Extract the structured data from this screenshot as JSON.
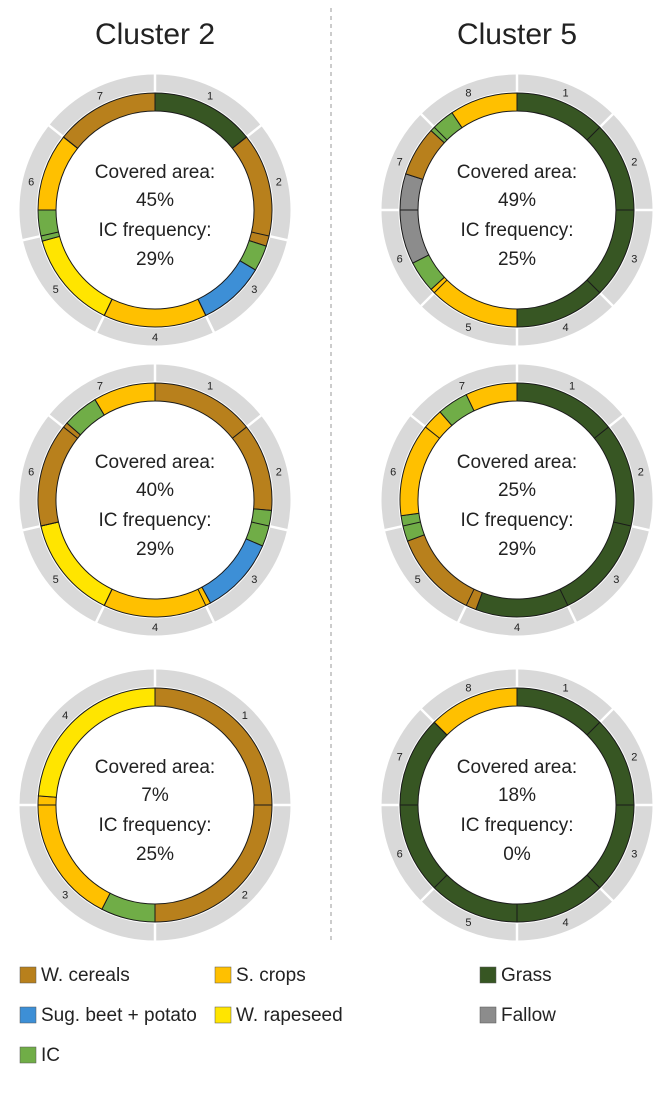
{
  "cluster_titles": [
    "Cluster 2",
    "Cluster 5"
  ],
  "legend": [
    {
      "name": "W. cereals",
      "color": "#b8801c"
    },
    {
      "name": "S. crops",
      "color": "#ffc000"
    },
    {
      "name": "Grass",
      "color": "#375623"
    },
    {
      "name": "Sug. beet + potato",
      "color": "#3d8fd6"
    },
    {
      "name": "W. rapeseed",
      "color": "#ffe500"
    },
    {
      "name": "Fallow",
      "color": "#8c8c8c"
    },
    {
      "name": "IC",
      "color": "#70ad47"
    }
  ],
  "chart_data": [
    {
      "type": "donut",
      "years": [
        1,
        2,
        3,
        4,
        5,
        6,
        7
      ],
      "segments": [
        {
          "crop": "Grass",
          "years": 1
        },
        {
          "crop": "W. cereals",
          "years": 1.1
        },
        {
          "crop": "IC",
          "years": 0.25
        },
        {
          "crop": "Sug. beet + potato",
          "years": 0.65
        },
        {
          "crop": "S. crops",
          "years": 1
        },
        {
          "crop": "W. rapeseed",
          "years": 0.95
        },
        {
          "crop": "IC",
          "years": 0.3
        },
        {
          "crop": "S. crops",
          "years": 0.75
        },
        {
          "crop": "W. cereals",
          "years": 1
        }
      ],
      "center_labels": [
        "Covered area:",
        "IC frequency:"
      ],
      "covered_area": {
        "value": 45,
        "label": "45%"
      },
      "ic_frequency": {
        "value": 29,
        "label": "29%"
      }
    },
    {
      "type": "donut",
      "years": [
        1,
        2,
        3,
        4,
        5,
        6,
        7
      ],
      "segments": [
        {
          "crop": "W. cereals",
          "years": 1.85
        },
        {
          "crop": "IC",
          "years": 0.35
        },
        {
          "crop": "Sug. beet + potato",
          "years": 0.75
        },
        {
          "crop": "S. crops",
          "years": 1.05
        },
        {
          "crop": "W. rapeseed",
          "years": 1
        },
        {
          "crop": "W. cereals",
          "years": 1.05
        },
        {
          "crop": "IC",
          "years": 0.35
        },
        {
          "crop": "S. crops",
          "years": 0.6
        }
      ],
      "center_labels": [
        "Covered area:",
        "IC frequency:"
      ],
      "covered_area": {
        "value": 40,
        "label": "40%"
      },
      "ic_frequency": {
        "value": 29,
        "label": "29%"
      }
    },
    {
      "type": "donut",
      "years": [
        1,
        2,
        3,
        4
      ],
      "segments": [
        {
          "crop": "W. cereals",
          "years": 2
        },
        {
          "crop": "IC",
          "years": 0.3
        },
        {
          "crop": "S. crops",
          "years": 0.75
        },
        {
          "crop": "W. rapeseed",
          "years": 0.95
        }
      ],
      "center_labels": [
        "Covered area:",
        "IC frequency:"
      ],
      "covered_area": {
        "value": 7,
        "label": "7%"
      },
      "ic_frequency": {
        "value": 25,
        "label": "25%"
      }
    },
    {
      "type": "donut",
      "years": [
        1,
        2,
        3,
        4,
        5,
        6,
        7,
        8
      ],
      "segments": [
        {
          "crop": "Grass",
          "years": 4
        },
        {
          "crop": "S. crops",
          "years": 1.05
        },
        {
          "crop": "IC",
          "years": 0.35
        },
        {
          "crop": "Fallow",
          "years": 1
        },
        {
          "crop": "W. cereals",
          "years": 0.55
        },
        {
          "crop": "IC",
          "years": 0.3
        },
        {
          "crop": "S. crops",
          "years": 0.75
        }
      ],
      "center_labels": [
        "Covered area:",
        "IC frequency:"
      ],
      "covered_area": {
        "value": 49,
        "label": "49%"
      },
      "ic_frequency": {
        "value": 25,
        "label": "25%"
      }
    },
    {
      "type": "donut",
      "years": [
        1,
        2,
        3,
        4,
        5,
        6,
        7
      ],
      "segments": [
        {
          "crop": "Grass",
          "years": 3.9
        },
        {
          "crop": "W. cereals",
          "years": 0.95
        },
        {
          "crop": "IC",
          "years": 0.25
        },
        {
          "crop": "S. crops",
          "years": 1.1
        },
        {
          "crop": "IC",
          "years": 0.3
        },
        {
          "crop": "S. crops",
          "years": 0.5
        }
      ],
      "center_labels": [
        "Covered area:",
        "IC frequency:"
      ],
      "covered_area": {
        "value": 25,
        "label": "25%"
      },
      "ic_frequency": {
        "value": 29,
        "label": "29%"
      }
    },
    {
      "type": "donut",
      "years": [
        1,
        2,
        3,
        4,
        5,
        6,
        7,
        8
      ],
      "segments": [
        {
          "crop": "Grass",
          "years": 7
        },
        {
          "crop": "S. crops",
          "years": 1
        }
      ],
      "center_labels": [
        "Covered area:",
        "IC frequency:"
      ],
      "covered_area": {
        "value": 18,
        "label": "18%"
      },
      "ic_frequency": {
        "value": 0,
        "label": "0%"
      }
    }
  ]
}
